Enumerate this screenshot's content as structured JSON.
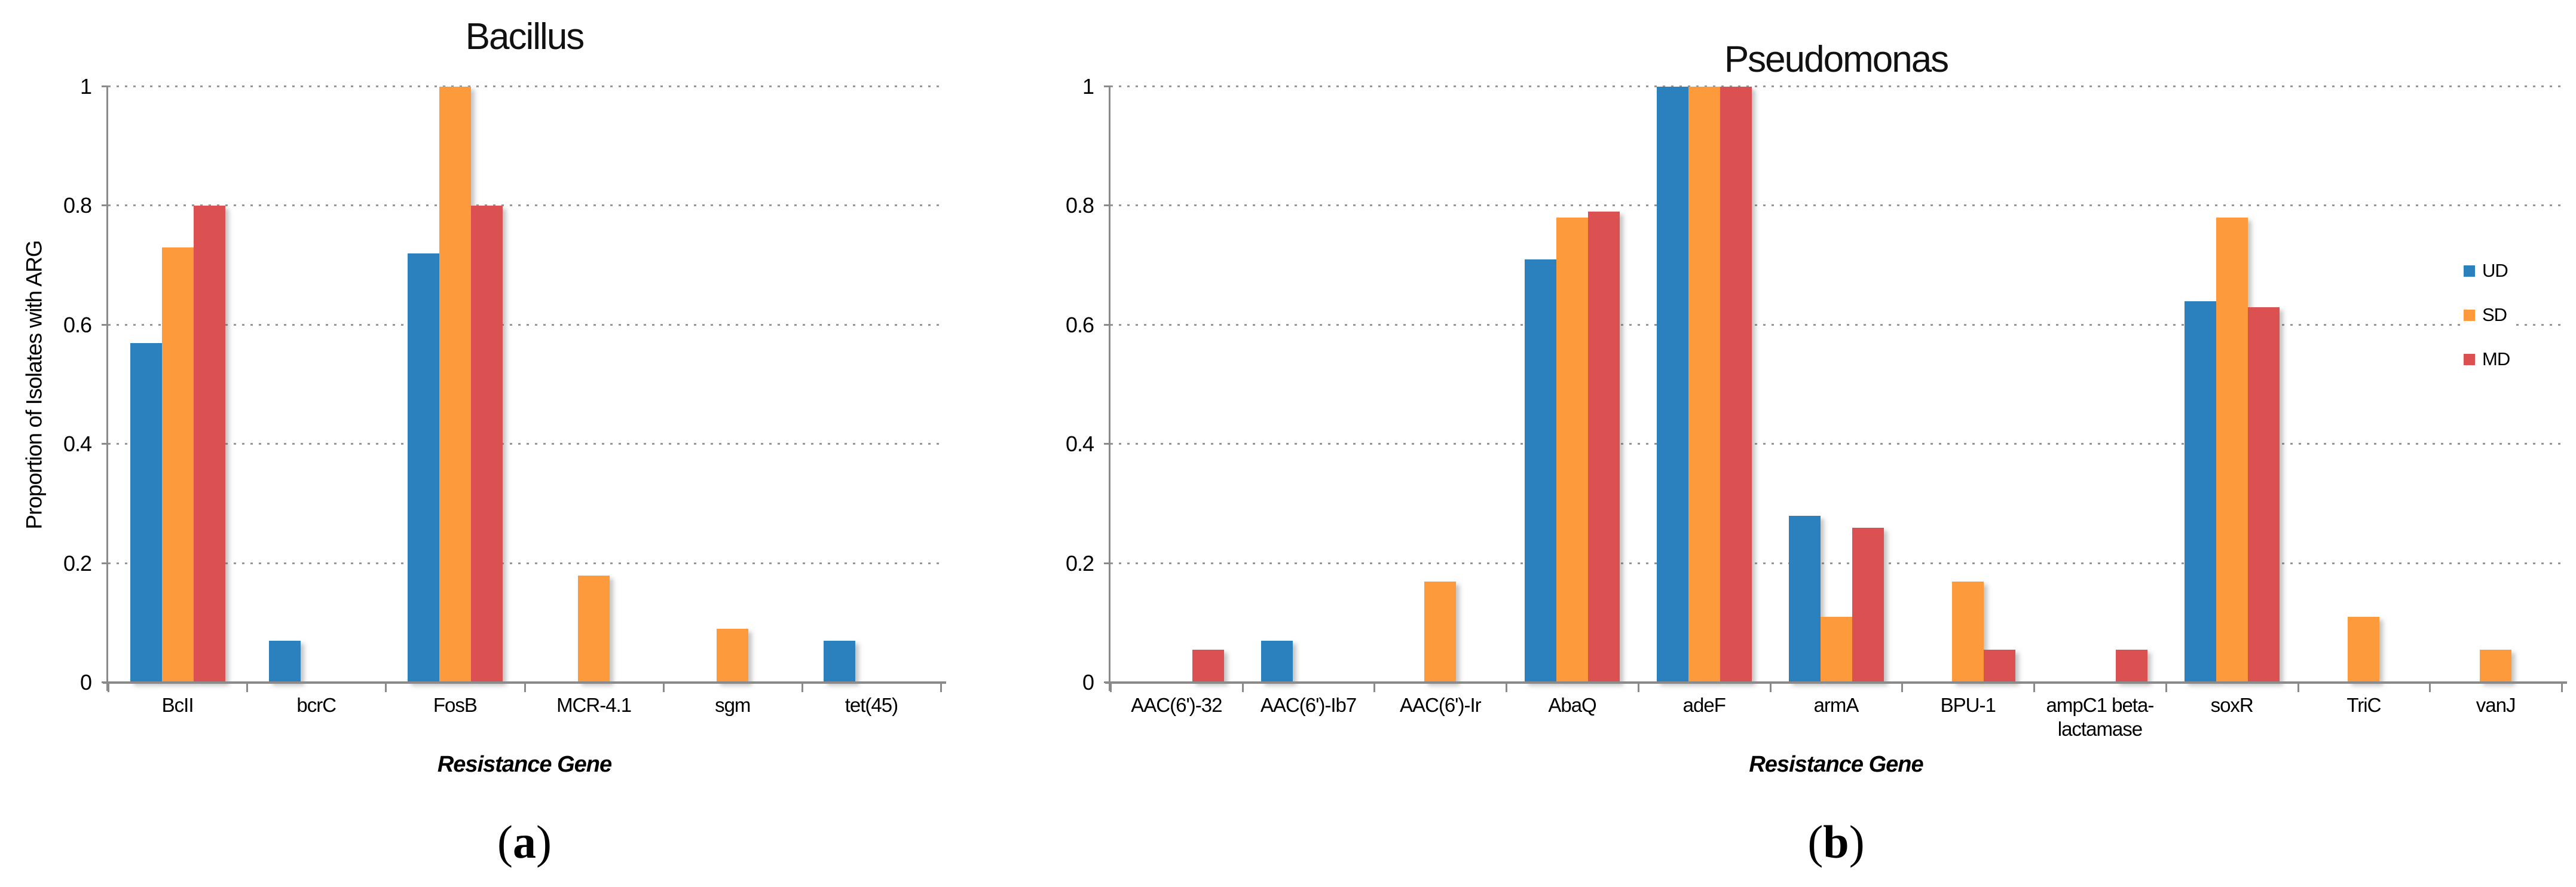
{
  "figure": {
    "background": "#FFFFFF",
    "axis_color": "#8A8A8A",
    "gridline_color": "#969696",
    "series_colors": {
      "UD": "#2B80BE",
      "SD": "#FC9A3C",
      "MD": "#DB5050"
    }
  },
  "chart_data": [
    {
      "type": "bar",
      "title": "Bacillus",
      "caption": {
        "open": "(",
        "letter": "a",
        "close": ")"
      },
      "xlabel": "Resistance Gene",
      "ylabel": "Proportion of Isolates with ARG",
      "ylim": [
        0,
        1
      ],
      "ytick_values": [
        0,
        0.2,
        0.4,
        0.6,
        0.8,
        1
      ],
      "ytick_labels": [
        "0",
        "0.2",
        "0.4",
        "0.6",
        "0.8",
        "1"
      ],
      "grid": "horizontal-dotted",
      "legend": null,
      "categories": [
        "BcII",
        "bcrC",
        "FosB",
        "MCR-4.1",
        "sgm",
        "tet(45)"
      ],
      "series": [
        {
          "name": "UD",
          "color": "#2B80BE",
          "values": [
            0.57,
            0.07,
            0.72,
            0,
            0,
            0.07
          ]
        },
        {
          "name": "SD",
          "color": "#FC9A3C",
          "values": [
            0.73,
            0,
            1,
            0.18,
            0.09,
            0
          ]
        },
        {
          "name": "MD",
          "color": "#DB5050",
          "values": [
            0.8,
            0,
            0.8,
            0,
            0,
            0
          ]
        }
      ]
    },
    {
      "type": "bar",
      "title": "Pseudomonas",
      "caption": {
        "open": "(",
        "letter": "b",
        "close": ")"
      },
      "xlabel": "Resistance Gene",
      "ylabel": "",
      "ylim": [
        0,
        1
      ],
      "ytick_values": [
        0,
        0.2,
        0.4,
        0.6,
        0.8,
        1
      ],
      "ytick_labels": [
        "0",
        "0.2",
        "0.4",
        "0.6",
        "0.8",
        "1"
      ],
      "grid": "horizontal-dotted",
      "legend": {
        "position": "right",
        "entries": [
          "UD",
          "SD",
          "MD"
        ]
      },
      "categories": [
        "AAC(6')-32",
        "AAC(6')-Ib7",
        "AAC(6')-Ir",
        "AbaQ",
        "adeF",
        "armA",
        "BPU-1",
        "ampC1 beta-lactamase",
        "soxR",
        "TriC",
        "vanJ"
      ],
      "series": [
        {
          "name": "UD",
          "color": "#2B80BE",
          "values": [
            0,
            0.07,
            0,
            0.71,
            1,
            0.28,
            0,
            0,
            0.64,
            0,
            0
          ]
        },
        {
          "name": "SD",
          "color": "#FC9A3C",
          "values": [
            0,
            0,
            0.17,
            0.78,
            1,
            0.11,
            0.17,
            0,
            0.78,
            0.11,
            0.055
          ]
        },
        {
          "name": "MD",
          "color": "#DB5050",
          "values": [
            0.055,
            0,
            0,
            0.79,
            1,
            0.26,
            0.055,
            0.055,
            0.63,
            0,
            0
          ]
        }
      ]
    }
  ]
}
